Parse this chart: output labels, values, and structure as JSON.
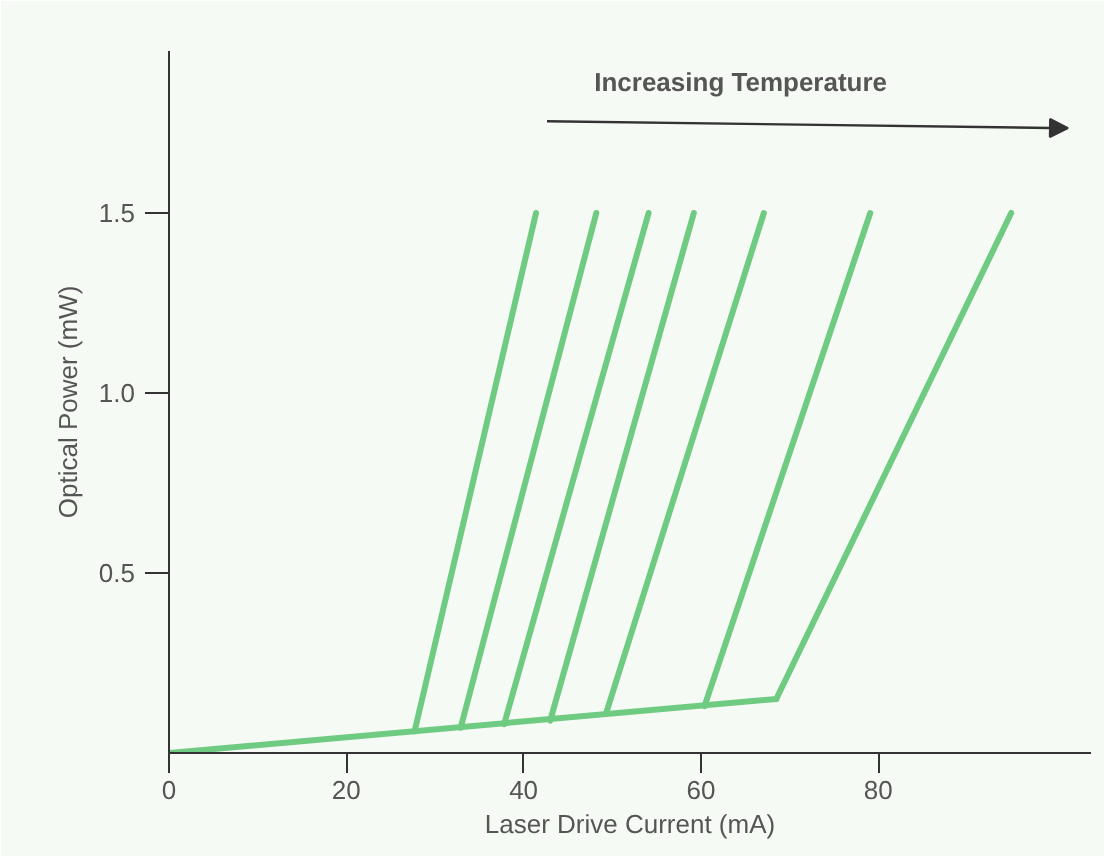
{
  "chart_data": {
    "type": "line",
    "xlabel": "Laser Drive Current (mA)",
    "ylabel": "Optical Power (mW)",
    "annotations": [
      "Increasing Temperature"
    ],
    "xlim": [
      0,
      104
    ],
    "ylim": [
      0,
      1.95
    ],
    "xticks": [
      0,
      20,
      40,
      60,
      80
    ],
    "yticks": [
      {
        "value": 0.5,
        "label": "0.5"
      },
      {
        "value": 1.0,
        "label": "1.0"
      },
      {
        "value": 1.5,
        "label": "1.5"
      }
    ],
    "grid": false,
    "marker": "none",
    "line_style": "solid",
    "series": [
      {
        "color": "#6fcb82",
        "x": [
          0,
          68.5
        ],
        "values": [
          0,
          0.15
        ]
      },
      {
        "color": "#6fcb82",
        "x": [
          27.7,
          41.4
        ],
        "values": [
          0.06,
          1.5
        ]
      },
      {
        "color": "#6fcb82",
        "x": [
          32.9,
          48.2
        ],
        "values": [
          0.07,
          1.5
        ]
      },
      {
        "color": "#6fcb82",
        "x": [
          37.8,
          54.1
        ],
        "values": [
          0.08,
          1.5
        ]
      },
      {
        "color": "#6fcb82",
        "x": [
          43.0,
          59.2
        ],
        "values": [
          0.09,
          1.5
        ]
      },
      {
        "color": "#6fcb82",
        "x": [
          49.3,
          67.1
        ],
        "values": [
          0.11,
          1.5
        ]
      },
      {
        "color": "#6fcb82",
        "x": [
          60.4,
          79.1
        ],
        "values": [
          0.13,
          1.5
        ]
      },
      {
        "color": "#6fcb82",
        "x": [
          68.5,
          95.0
        ],
        "values": [
          0.15,
          1.5
        ]
      }
    ]
  }
}
